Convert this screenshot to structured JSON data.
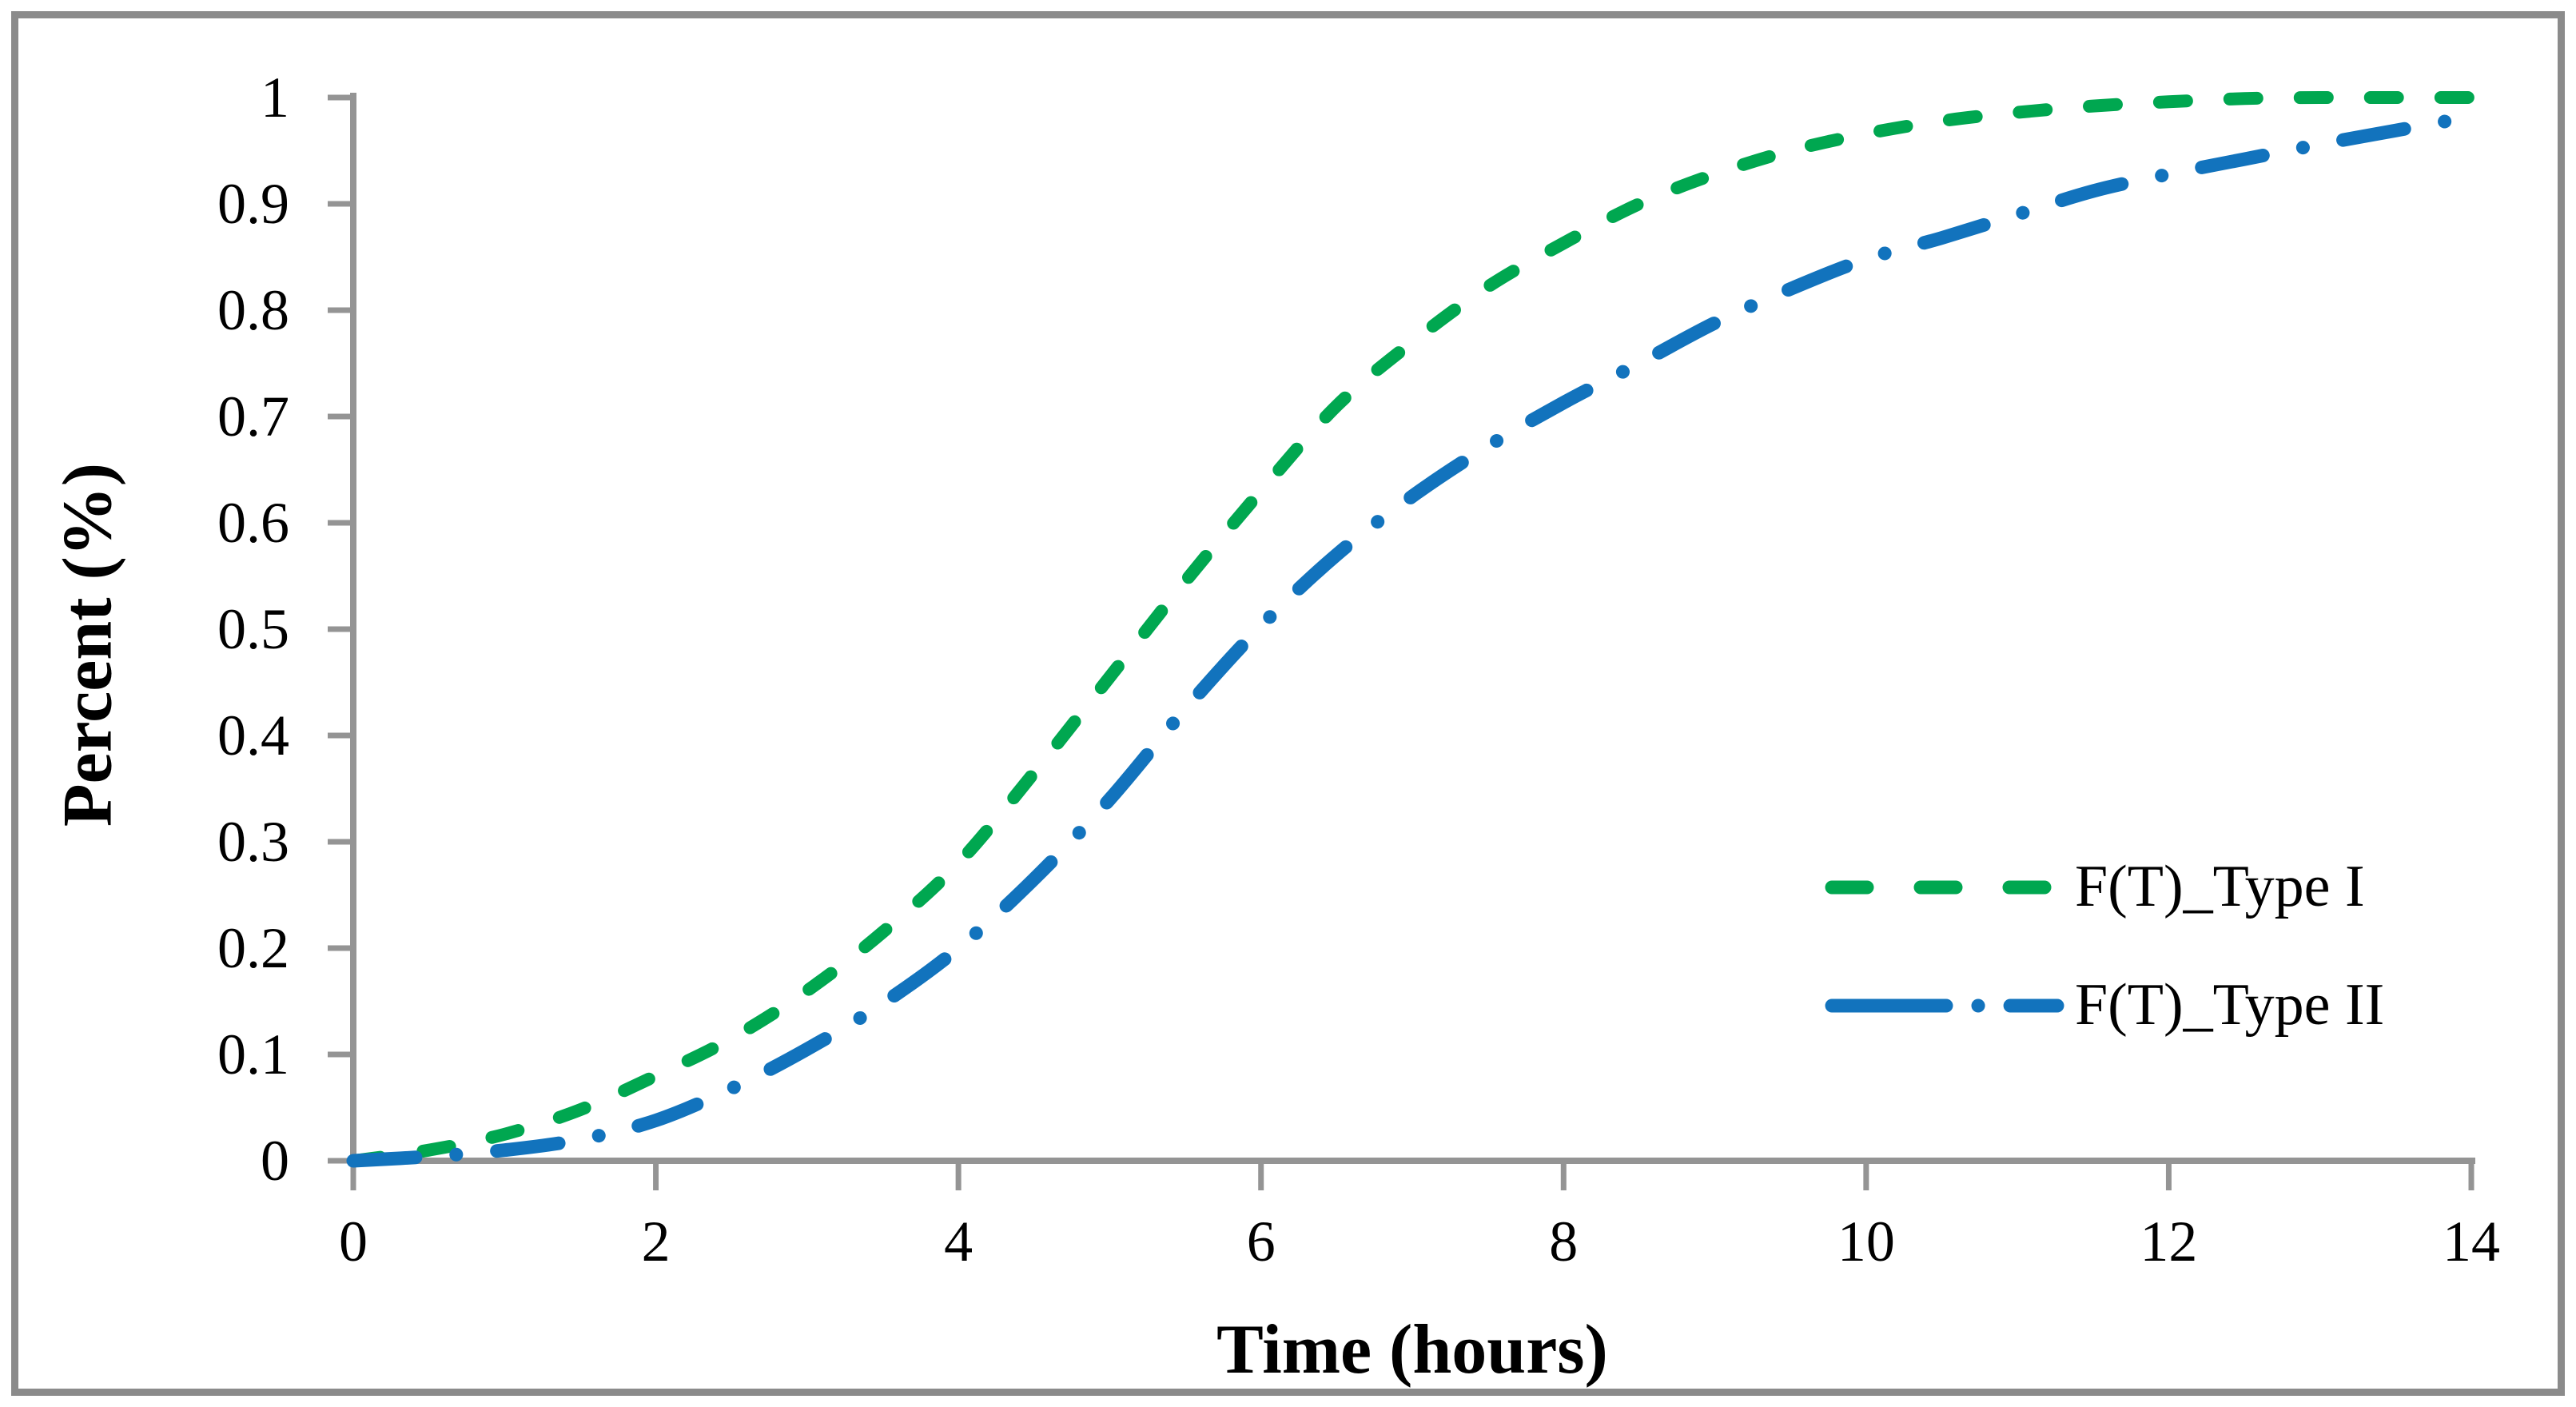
{
  "figure": {
    "background": "#ffffff",
    "border_color": "#8b8b8b",
    "axis_color": "#949494"
  },
  "chart_data": {
    "type": "line",
    "title": "",
    "xlabel": "Time (hours)",
    "ylabel": "Percent (%)",
    "xlim": [
      0,
      14
    ],
    "ylim": [
      0,
      1
    ],
    "grid": false,
    "legend_position": "inside-right-middle",
    "x_ticks": [
      "0",
      "2",
      "4",
      "6",
      "8",
      "10",
      "12",
      "14"
    ],
    "y_ticks": [
      "0",
      "0.1",
      "0.2",
      "0.3",
      "0.4",
      "0.5",
      "0.6",
      "0.7",
      "0.8",
      "0.9",
      "1"
    ],
    "x": [
      0,
      0.5,
      1,
      1.5,
      2,
      2.5,
      3,
      3.5,
      4,
      4.5,
      5,
      5.5,
      6,
      6.5,
      7,
      7.5,
      8,
      8.5,
      9,
      9.5,
      10,
      10.5,
      11,
      11.5,
      12,
      12.5,
      13,
      13.5,
      14
    ],
    "series": [
      {
        "name": "F(T)_Type I",
        "color": "#00a750",
        "style": "dashed",
        "values": [
          0,
          0.01,
          0.025,
          0.048,
          0.08,
          0.115,
          0.16,
          0.215,
          0.28,
          0.365,
          0.455,
          0.545,
          0.63,
          0.71,
          0.77,
          0.822,
          0.863,
          0.9,
          0.928,
          0.95,
          0.966,
          0.978,
          0.986,
          0.992,
          0.996,
          0.999,
          1.0,
          1.0,
          1.0
        ]
      },
      {
        "name": "F(T)_Type II",
        "color": "#1273bd",
        "style": "dash-dot",
        "values": [
          0,
          0.004,
          0.01,
          0.02,
          0.038,
          0.068,
          0.105,
          0.148,
          0.2,
          0.265,
          0.34,
          0.425,
          0.503,
          0.57,
          0.625,
          0.672,
          0.713,
          0.75,
          0.788,
          0.82,
          0.848,
          0.868,
          0.89,
          0.912,
          0.928,
          0.942,
          0.956,
          0.969,
          0.982
        ]
      }
    ]
  }
}
